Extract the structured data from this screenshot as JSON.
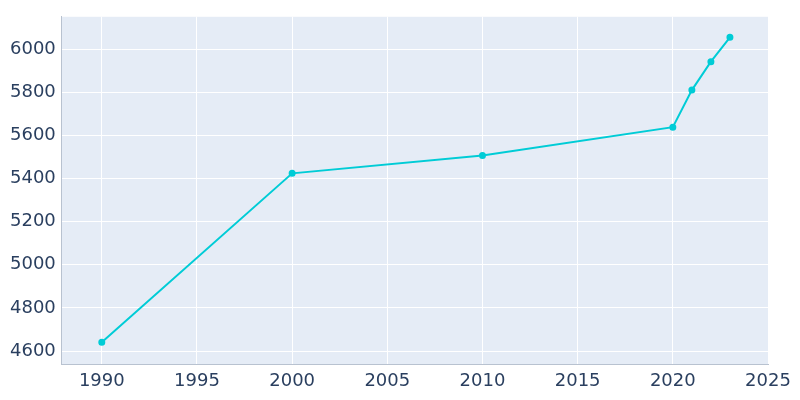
{
  "chart_data": {
    "type": "line",
    "x": [
      1990,
      2000,
      2010,
      2020,
      2021,
      2022,
      2023
    ],
    "values": [
      4641,
      5424,
      5507,
      5638,
      5810,
      5942,
      6055
    ],
    "color": "#00ccd6",
    "marker": "circle",
    "xlim": [
      1987.9,
      2025
    ],
    "xticks": [
      1990,
      1995,
      2000,
      2005,
      2010,
      2015,
      2020,
      2025
    ],
    "ylim": [
      4538,
      6150
    ],
    "yticks": [
      4600,
      4800,
      5000,
      5200,
      5400,
      5600,
      5800,
      6000
    ],
    "grid": true
  }
}
